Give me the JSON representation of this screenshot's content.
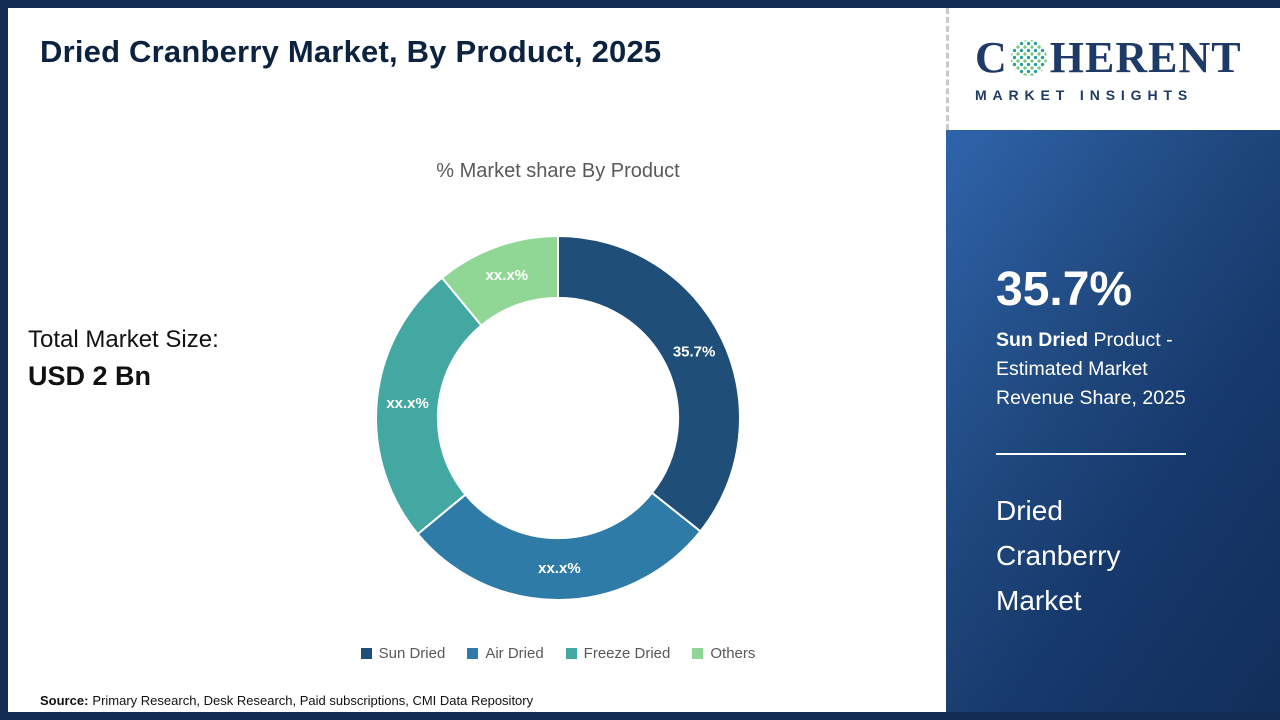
{
  "page": {
    "title": "Dried Cranberry Market, By Product, 2025",
    "source_label": "Source:",
    "source_text": "Primary Research, Desk Research, Paid subscriptions, CMI Data Repository"
  },
  "logo": {
    "brand_c": "C",
    "brand_rest": "HERENT",
    "tagline": "MARKET INSIGHTS"
  },
  "stats": {
    "total_label": "Total Market Size:",
    "total_value": "USD 2 Bn"
  },
  "right_panel": {
    "highlight_value": "35.7%",
    "highlight_bold": "Sun Dried",
    "highlight_rest": " Product - Estimated Market Revenue Share, 2025",
    "panel_title": "Dried Cranberry Market"
  },
  "chart_data": {
    "type": "pie",
    "subtype": "donut",
    "title": "% Market share By Product",
    "categories": [
      "Sun Dried",
      "Air Dried",
      "Freeze Dried",
      "Others"
    ],
    "values": [
      35.7,
      28.3,
      25.0,
      11.0
    ],
    "value_labels": [
      "35.7%",
      "xx.x%",
      "xx.x%",
      "xx.x%"
    ],
    "colors": [
      "#1F4E79",
      "#2D7BA6",
      "#44A8A2",
      "#90D695"
    ],
    "start_angle_deg": 0,
    "direction": "clockwise",
    "inner_radius_ratio": 0.66,
    "legend_position": "bottom"
  }
}
